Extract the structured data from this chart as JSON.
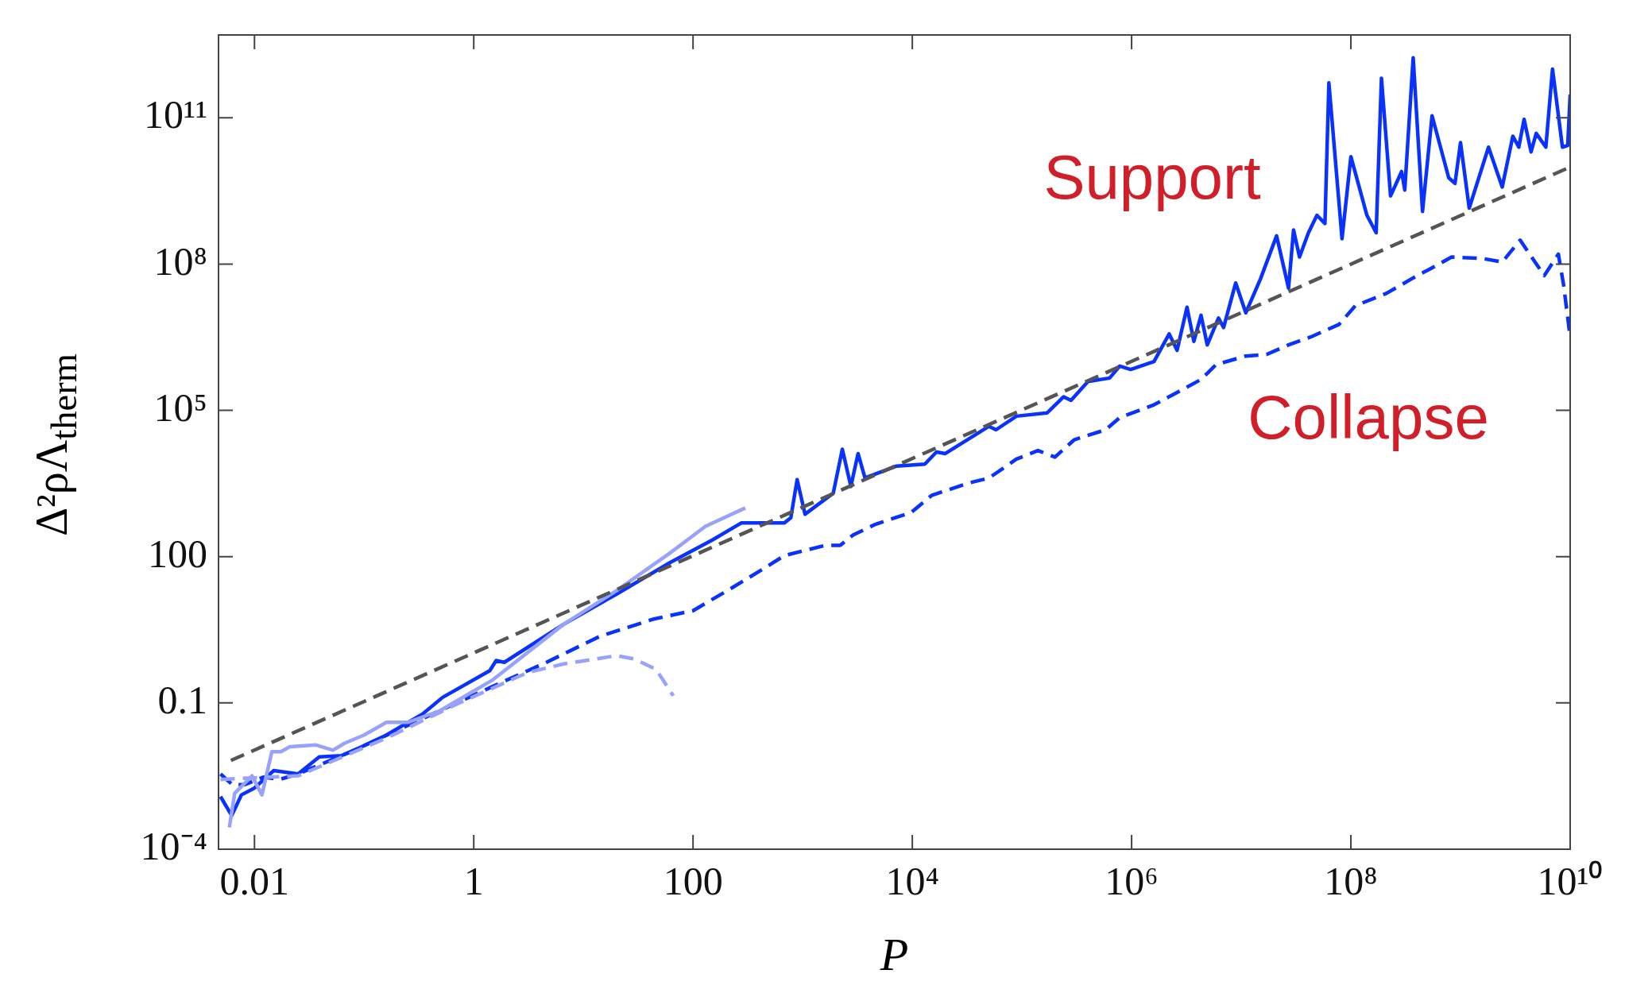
{
  "chart_data": {
    "type": "line",
    "xlabel": "P",
    "ylabel": "Δ²ρΛ$_{therm}$",
    "log": "xy",
    "grid": false,
    "legend": false,
    "xlim": [
      0.0047,
      10000000000.0
    ],
    "ylim": [
      0.0001,
      5000000000000.0
    ],
    "xticks": [
      0.01,
      1,
      100,
      {
        "value": 10000,
        "label": "10⁴"
      },
      {
        "value": 1000000.0,
        "label": "10⁶"
      },
      {
        "value": 100000000.0,
        "label": "10⁸"
      },
      {
        "value": 10000000000.0,
        "label": "10¹⁰"
      }
    ],
    "yticks": [
      {
        "value": 0.0001,
        "label": "10⁻⁴"
      },
      0.1,
      100,
      {
        "value": 100000.0,
        "label": "10⁵"
      },
      {
        "value": 100000000.0,
        "label": "10⁸"
      },
      {
        "value": 100000000000.0,
        "label": "10¹¹"
      }
    ],
    "annotations": [
      "Support",
      "Collapse"
    ],
    "series": [
      {
        "color": "#555555",
        "line_style": "dashed",
        "x": [
          0.0061,
          10000000000.0
        ],
        "values": [
          0.0066,
          9800000000.0
        ]
      },
      {
        "color": "#98a2fa",
        "line_style": "solid",
        "x": [
          0.0059,
          0.0066,
          0.0095,
          0.0117,
          0.0144,
          0.0174,
          0.021,
          0.036,
          0.052,
          0.066,
          0.1,
          0.16,
          0.25,
          0.49,
          1.5,
          6.6,
          20,
          62,
          130,
          300
        ],
        "values": [
          0.00028,
          0.0014,
          0.0032,
          0.0013,
          0.01,
          0.01,
          0.0126,
          0.0138,
          0.0107,
          0.0148,
          0.022,
          0.04,
          0.04,
          0.069,
          0.3,
          4.1,
          20,
          120,
          420,
          1000
        ]
      },
      {
        "color": "#98a2fa",
        "line_style": "dashed",
        "x": [
          0.0049,
          0.025,
          0.16,
          0.71,
          3.1,
          6.6,
          20,
          29,
          46,
          66
        ],
        "values": [
          0.0027,
          0.0032,
          0.019,
          0.096,
          0.42,
          0.63,
          0.93,
          0.8,
          0.49,
          0.14
        ]
      },
      {
        "color": "#0a32ff",
        "line_style": "dashed",
        "x": [
          0.0049,
          0.0063,
          0.0081,
          0.012,
          0.017,
          0.025,
          0.076,
          0.19,
          0.46,
          1.5,
          4.6,
          14,
          43,
          100,
          220,
          430,
          680,
          1600,
          2200,
          2900,
          4600,
          9800,
          15000,
          32000,
          50000,
          89000,
          140000,
          200000,
          300000,
          580000,
          780000,
          1600000.0,
          4300000.0,
          5900000.0,
          11000000.0,
          17000000.0,
          27000000.0,
          43000000.0,
          78000000.0,
          110000000.0,
          210000000.0,
          430000000.0,
          520000000.0,
          830000000.0,
          1600000000.0,
          2400000000.0,
          3500000000.0,
          5800000000.0,
          7800000000.0,
          8700000000.0,
          10000000000.0
        ],
        "values": [
          0.0035,
          0.0021,
          0.0021,
          0.003,
          0.0027,
          0.0035,
          0.01,
          0.026,
          0.065,
          0.22,
          0.68,
          2.3,
          5.2,
          7.8,
          22,
          55,
          105,
          170,
          170,
          280,
          460,
          810,
          1800,
          3200,
          4100,
          10000,
          15000,
          11000,
          25000,
          40000,
          71000,
          130000,
          430000,
          870000,
          1300000.0,
          1400000.0,
          2200000.0,
          3200000.0,
          5800000.0,
          14000000.0,
          25000000.0,
          63000000.0,
          78000000.0,
          140000000.0,
          130000000.0,
          110000000.0,
          310000000.0,
          58000000.0,
          160000000.0,
          38000000.0,
          3200000.0
        ]
      },
      {
        "color": "#0a32ff",
        "line_style": "solid",
        "x": [
          0.0049,
          0.0062,
          0.0076,
          0.01,
          0.015,
          0.025,
          0.039,
          0.062,
          0.095,
          0.16,
          0.34,
          0.52,
          1.4,
          1.6,
          1.9,
          6.6,
          20,
          62,
          150,
          275,
          680,
          780,
          890,
          1050,
          1900,
          2300,
          2750,
          3200,
          3700,
          7200,
          13000,
          16600,
          20000,
          50000,
          58000,
          89000,
          170000,
          240000,
          280000,
          400000,
          630000,
          780000,
          980000,
          1600000.0,
          2200000.0,
          2600000.0,
          3200000.0,
          3700000.0,
          4300000.0,
          4900000.0,
          6200000.0,
          6900000.0,
          8900000.0,
          11000000.0,
          15000000.0,
          21000000.0,
          27000000.0,
          30000000.0,
          34000000.0,
          41000000.0,
          49000000.0,
          58000000.0,
          63000000.0,
          83000000.0,
          100000000.0,
          140000000.0,
          170000000.0,
          190000000.0,
          230000000.0,
          290000000.0,
          310000000.0,
          370000000.0,
          450000000.0,
          550000000.0,
          780000000.0,
          890000000.0,
          1000000000.0,
          1200000000.0,
          1800000000.0,
          2400000000.0,
          3000000000.0,
          3400000000.0,
          3800000000.0,
          4400000000.0,
          4900000000.0,
          6000000000.0,
          6900000000.0,
          8500000000.0,
          9500000000.0,
          10000000000.0
        ],
        "values": [
          0.0012,
          0.00049,
          0.0013,
          0.0018,
          0.0041,
          0.0035,
          0.0078,
          0.0083,
          0.0126,
          0.022,
          0.059,
          0.13,
          0.46,
          0.74,
          0.68,
          4.1,
          17,
          76,
          220,
          490,
          490,
          630,
          3800,
          740,
          2000,
          16000,
          2750,
          13000,
          4100,
          7200,
          7900,
          14000,
          13000,
          47000,
          40000,
          76000,
          89000,
          190000,
          160000,
          390000,
          460000,
          810000,
          690000,
          1000000.0,
          3700000.0,
          1700000.0,
          13000000.0,
          2600000.0,
          8900000.0,
          2200000.0,
          7800000.0,
          5000000.0,
          41000000.0,
          10000000.0,
          50000000.0,
          380000000.0,
          32000000.0,
          500000000.0,
          140000000.0,
          440000000.0,
          1000000000.0,
          680000000.0,
          520000000000.0,
          330000000.0,
          16000000000.0,
          1000000000.0,
          440000000.0,
          650000000000.0,
          2500000000.0,
          7900000000.0,
          3300000000.0,
          1700000000000.0,
          1200000000.0,
          110000000000.0,
          5900000000.0,
          4500000000.0,
          31000000000.0,
          1400000000.0,
          25000000000.0,
          3800000000.0,
          42000000000.0,
          25000000000.0,
          93000000000.0,
          20000000000.0,
          48000000000.0,
          25000000000.0,
          1000000000000.0,
          25000000000.0,
          27000000000.0,
          300000000000.0
        ]
      }
    ]
  }
}
